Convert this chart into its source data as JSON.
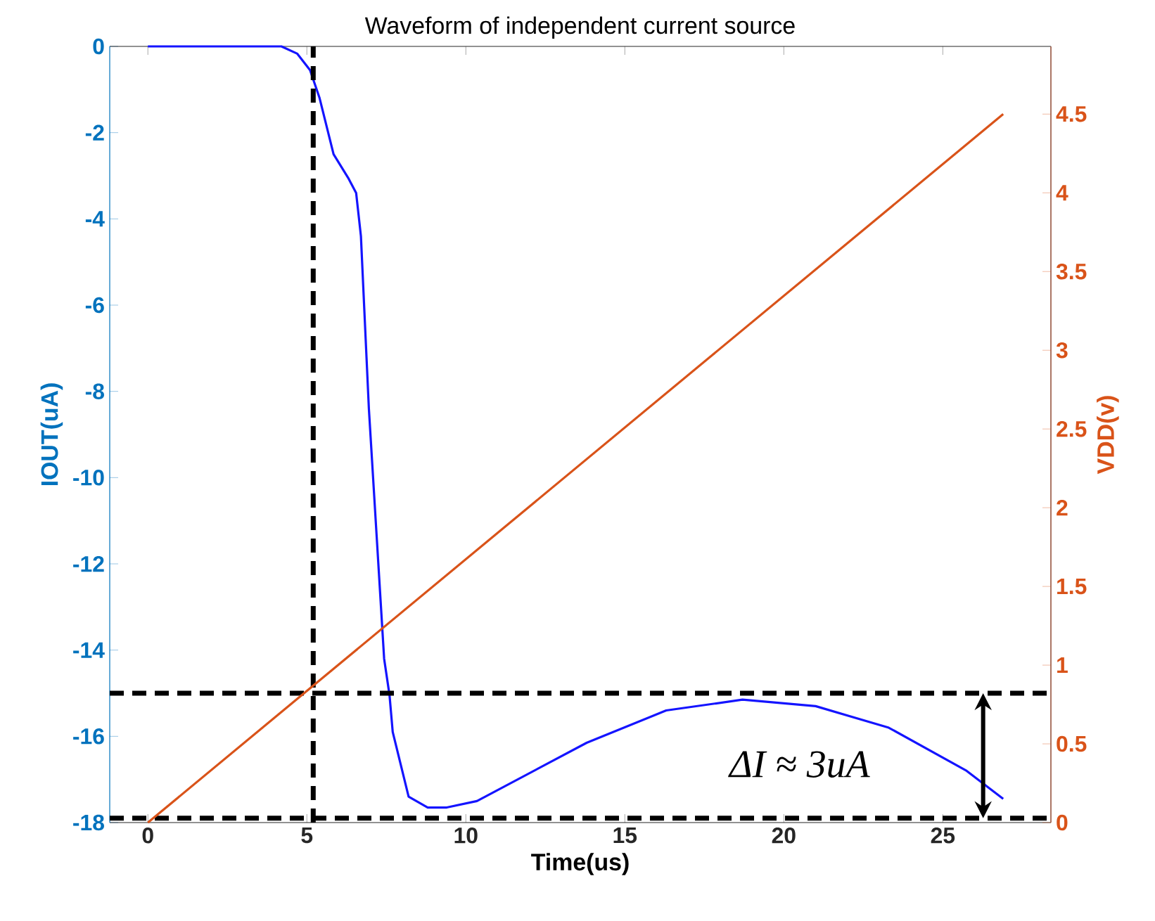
{
  "chart_data": {
    "type": "line",
    "title": "Waveform of independent current source",
    "xlabel": "Time(us)",
    "ylabel": "IOUT(uA)",
    "y2label": "VDD(v)",
    "xlim": [
      -1.2,
      28.4
    ],
    "ylim": [
      -18,
      0
    ],
    "y2lim": [
      0,
      4.93
    ],
    "xticks": [
      0,
      5,
      10,
      15,
      20,
      25
    ],
    "yticks": [
      -18,
      -16,
      -14,
      -12,
      -10,
      -8,
      -6,
      -4,
      -2,
      0
    ],
    "y2ticks": [
      0,
      0.5,
      1,
      1.5,
      2,
      2.5,
      3,
      3.5,
      4,
      4.5
    ],
    "grid": false,
    "marker": "none",
    "series": [
      {
        "color": "#1414ff",
        "x": [
          0,
          4.2,
          4.7,
          5.1,
          5.4,
          5.84,
          6.3,
          6.55,
          6.7,
          6.95,
          7.43,
          7.6,
          7.7,
          8.2,
          8.8,
          9.4,
          10.35,
          12.65,
          13.8,
          16.3,
          18.7,
          21.0,
          23.3,
          25.75,
          26.9
        ],
        "values": [
          0,
          0,
          -0.17,
          -0.55,
          -1.2,
          -2.5,
          -3.05,
          -3.4,
          -4.4,
          -8.4,
          -14.2,
          -15.05,
          -15.9,
          -17.4,
          -17.65,
          -17.65,
          -17.5,
          -16.6,
          -16.15,
          -15.4,
          -15.15,
          -15.3,
          -15.8,
          -16.8,
          -17.45
        ]
      },
      {
        "color": "#d95319",
        "axis": "y2",
        "x": [
          0,
          26.9
        ],
        "values": [
          0,
          4.5
        ]
      }
    ],
    "ref_lines": [
      {
        "axis": "x",
        "value": 5.2,
        "color": "#000000",
        "line_style": "dashed"
      },
      {
        "axis": "y",
        "value": -15,
        "color": "#000000",
        "line_style": "dashed"
      },
      {
        "axis": "y",
        "value": -17.9,
        "color": "#000000",
        "line_style": "dashed"
      }
    ],
    "annotations": [
      "ΔI ≈ 3uA"
    ]
  }
}
